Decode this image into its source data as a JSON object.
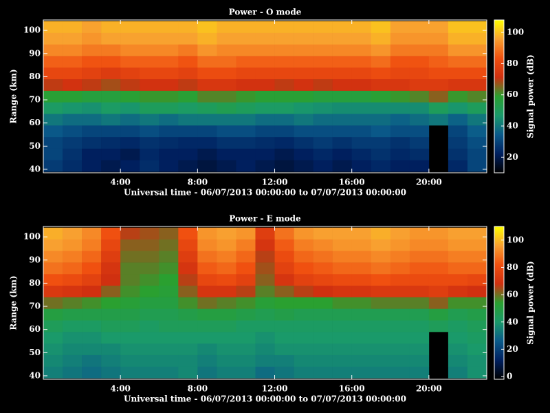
{
  "chart_data": [
    {
      "type": "heatmap",
      "title": "Power - O mode",
      "xlabel": "Universal time - 06/07/2013 00:00:00 to 07/07/2013 00:00:00",
      "ylabel": "Range (km)",
      "colorbar_label": "Signal power (dB)",
      "xbins": [
        0,
        1,
        2,
        3,
        4,
        5,
        6,
        7,
        8,
        9,
        10,
        11,
        12,
        13,
        14,
        15,
        16,
        17,
        18,
        19,
        20,
        21,
        22,
        23
      ],
      "ybins": [
        39,
        44,
        49,
        54,
        59,
        64,
        69,
        74,
        79,
        84,
        89,
        94,
        99,
        104
      ],
      "xlim": [
        0,
        23
      ],
      "ylim": [
        38.5,
        104.5
      ],
      "xticks": [
        {
          "value": 4,
          "label": "4:00"
        },
        {
          "value": 8,
          "label": "8:00"
        },
        {
          "value": 12,
          "label": "12:00"
        },
        {
          "value": 16,
          "label": "16:00"
        },
        {
          "value": 20,
          "label": "20:00"
        }
      ],
      "yticks": [
        40,
        50,
        60,
        70,
        80,
        90,
        100
      ],
      "clim": [
        10,
        108
      ],
      "cticks": [
        20,
        40,
        60,
        80,
        100
      ],
      "colormap": [
        "#000000",
        "#002060",
        "#0a5a8a",
        "#1a9a6a",
        "#2aa030",
        "#d03010",
        "#f05010",
        "#f8a030",
        "#ffff00"
      ],
      "z": [
        [
          28,
          25,
          22,
          20,
          22,
          25,
          22,
          20,
          18,
          20,
          22,
          20,
          18,
          20,
          22,
          20,
          22,
          24,
          22,
          22,
          null,
          24,
          30
        ],
        [
          30,
          26,
          22,
          22,
          20,
          24,
          22,
          22,
          20,
          22,
          22,
          22,
          20,
          22,
          24,
          22,
          24,
          26,
          24,
          25,
          null,
          26,
          30
        ],
        [
          30,
          28,
          26,
          25,
          24,
          26,
          25,
          24,
          24,
          26,
          26,
          25,
          24,
          26,
          28,
          26,
          28,
          28,
          26,
          28,
          null,
          28,
          32
        ],
        [
          34,
          32,
          30,
          30,
          30,
          32,
          30,
          30,
          30,
          32,
          32,
          30,
          30,
          32,
          32,
          32,
          32,
          34,
          32,
          32,
          null,
          30,
          35
        ],
        [
          40,
          38,
          38,
          40,
          38,
          40,
          38,
          40,
          40,
          40,
          40,
          38,
          38,
          40,
          38,
          38,
          38,
          38,
          36,
          38,
          40,
          36,
          40
        ],
        [
          48,
          46,
          45,
          48,
          46,
          50,
          50,
          48,
          50,
          52,
          50,
          48,
          48,
          46,
          45,
          44,
          44,
          44,
          44,
          44,
          50,
          46,
          50
        ],
        [
          58,
          58,
          56,
          56,
          58,
          60,
          60,
          58,
          62,
          62,
          60,
          58,
          58,
          58,
          56,
          56,
          56,
          58,
          60,
          62,
          66,
          60,
          62
        ],
        [
          70,
          72,
          70,
          68,
          70,
          72,
          72,
          70,
          74,
          74,
          72,
          72,
          70,
          72,
          70,
          72,
          72,
          74,
          74,
          76,
          76,
          74,
          74
        ],
        [
          80,
          80,
          78,
          76,
          78,
          80,
          80,
          78,
          82,
          82,
          80,
          80,
          80,
          80,
          80,
          80,
          80,
          82,
          80,
          80,
          82,
          82,
          82
        ],
        [
          86,
          86,
          84,
          84,
          86,
          86,
          86,
          84,
          88,
          88,
          86,
          86,
          86,
          86,
          86,
          86,
          86,
          88,
          84,
          84,
          86,
          88,
          88
        ],
        [
          92,
          92,
          90,
          90,
          92,
          92,
          92,
          90,
          94,
          92,
          92,
          92,
          92,
          92,
          92,
          92,
          92,
          94,
          90,
          90,
          90,
          94,
          94
        ],
        [
          96,
          96,
          94,
          96,
          96,
          96,
          96,
          96,
          98,
          96,
          96,
          96,
          96,
          96,
          96,
          96,
          96,
          98,
          94,
          94,
          94,
          98,
          98
        ],
        [
          98,
          98,
          96,
          98,
          98,
          98,
          98,
          98,
          100,
          98,
          98,
          98,
          98,
          98,
          98,
          98,
          98,
          100,
          96,
          96,
          96,
          100,
          100
        ]
      ]
    },
    {
      "type": "heatmap",
      "title": "Power - E mode",
      "xlabel": "Universal time - 06/07/2013 00:00:00 to 07/07/2013 00:00:00",
      "ylabel": "Range (km)",
      "colorbar_label": "Signal power (dB)",
      "xbins": [
        0,
        1,
        2,
        3,
        4,
        5,
        6,
        7,
        8,
        9,
        10,
        11,
        12,
        13,
        14,
        15,
        16,
        17,
        18,
        19,
        20,
        21,
        22,
        23
      ],
      "ybins": [
        39,
        44,
        49,
        54,
        59,
        64,
        69,
        74,
        79,
        84,
        89,
        94,
        99,
        104
      ],
      "xlim": [
        0,
        23
      ],
      "ylim": [
        38.5,
        104.5
      ],
      "xticks": [
        {
          "value": 4,
          "label": "4:00"
        },
        {
          "value": 8,
          "label": "8:00"
        },
        {
          "value": 12,
          "label": "12:00"
        },
        {
          "value": 16,
          "label": "16:00"
        },
        {
          "value": 20,
          "label": "20:00"
        }
      ],
      "yticks": [
        40,
        50,
        60,
        70,
        80,
        90,
        100
      ],
      "clim": [
        -2,
        110
      ],
      "cticks": [
        0,
        20,
        40,
        60,
        80,
        100
      ],
      "colormap": [
        "#000000",
        "#002060",
        "#0a5a8a",
        "#1a9a6a",
        "#2aa030",
        "#d03010",
        "#f05010",
        "#f8a030",
        "#ffff00"
      ],
      "z": [
        [
          34,
          32,
          30,
          32,
          34,
          34,
          34,
          36,
          32,
          34,
          34,
          30,
          32,
          34,
          34,
          34,
          34,
          34,
          34,
          34,
          null,
          34,
          38
        ],
        [
          36,
          34,
          32,
          34,
          36,
          36,
          36,
          36,
          34,
          36,
          36,
          34,
          34,
          36,
          36,
          36,
          36,
          36,
          36,
          36,
          null,
          36,
          38
        ],
        [
          38,
          36,
          36,
          36,
          38,
          38,
          38,
          38,
          36,
          38,
          38,
          36,
          38,
          38,
          38,
          38,
          38,
          38,
          38,
          38,
          null,
          38,
          40
        ],
        [
          40,
          38,
          38,
          40,
          40,
          40,
          40,
          40,
          40,
          40,
          40,
          38,
          40,
          40,
          40,
          40,
          40,
          40,
          40,
          40,
          null,
          40,
          42
        ],
        [
          44,
          42,
          42,
          44,
          44,
          42,
          44,
          44,
          44,
          44,
          42,
          42,
          42,
          42,
          42,
          42,
          42,
          42,
          42,
          42,
          44,
          42,
          44
        ],
        [
          50,
          48,
          48,
          48,
          48,
          46,
          46,
          48,
          50,
          50,
          48,
          46,
          48,
          46,
          46,
          46,
          46,
          46,
          46,
          46,
          50,
          46,
          48
        ],
        [
          60,
          58,
          56,
          54,
          52,
          50,
          50,
          56,
          60,
          58,
          56,
          52,
          54,
          54,
          54,
          56,
          56,
          58,
          58,
          58,
          62,
          56,
          56
        ],
        [
          72,
          70,
          68,
          62,
          56,
          54,
          52,
          62,
          70,
          70,
          66,
          58,
          62,
          66,
          68,
          70,
          70,
          72,
          72,
          72,
          74,
          70,
          68
        ],
        [
          82,
          80,
          76,
          68,
          58,
          56,
          54,
          66,
          78,
          80,
          76,
          62,
          70,
          76,
          78,
          80,
          80,
          82,
          80,
          80,
          80,
          80,
          78
        ],
        [
          88,
          86,
          82,
          70,
          58,
          58,
          56,
          70,
          84,
          86,
          82,
          64,
          76,
          82,
          84,
          86,
          86,
          88,
          86,
          84,
          84,
          86,
          86
        ],
        [
          92,
          90,
          86,
          74,
          60,
          60,
          58,
          74,
          88,
          90,
          86,
          66,
          80,
          86,
          88,
          90,
          90,
          92,
          90,
          88,
          88,
          90,
          90
        ],
        [
          96,
          94,
          90,
          78,
          62,
          62,
          60,
          78,
          92,
          94,
          90,
          70,
          84,
          90,
          92,
          94,
          94,
          96,
          94,
          92,
          92,
          94,
          94
        ],
        [
          98,
          96,
          92,
          82,
          66,
          64,
          62,
          82,
          94,
          96,
          94,
          74,
          88,
          94,
          96,
          96,
          96,
          98,
          96,
          94,
          94,
          96,
          96
        ]
      ]
    }
  ]
}
